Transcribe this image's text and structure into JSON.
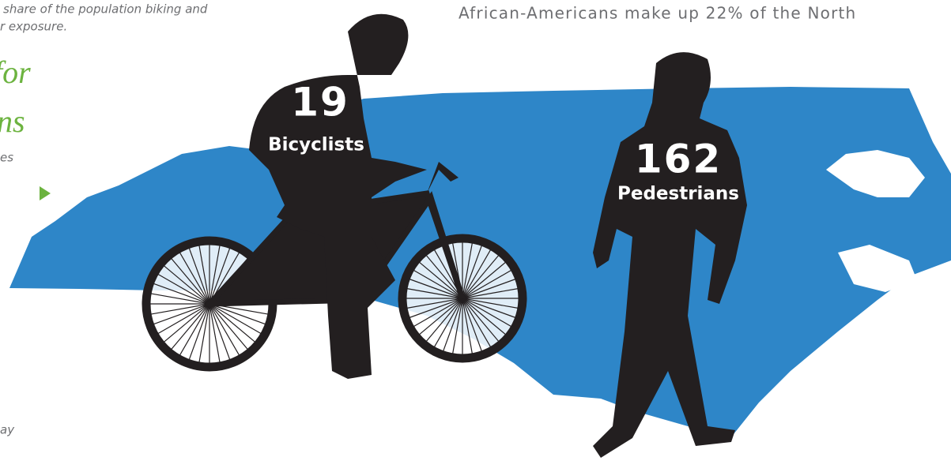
{
  "left_column": {
    "caption_lines": [
      "share of the population biking and",
      "r exposure."
    ],
    "heading_lines": [
      "for",
      "ns"
    ],
    "fragments": [
      "es",
      "ay"
    ]
  },
  "lead_text": "African-Americans make up 22% of the North",
  "figures": [
    {
      "number": 19,
      "label": "Bicyclists"
    },
    {
      "number": 162,
      "label": "Pedestrians"
    }
  ]
}
